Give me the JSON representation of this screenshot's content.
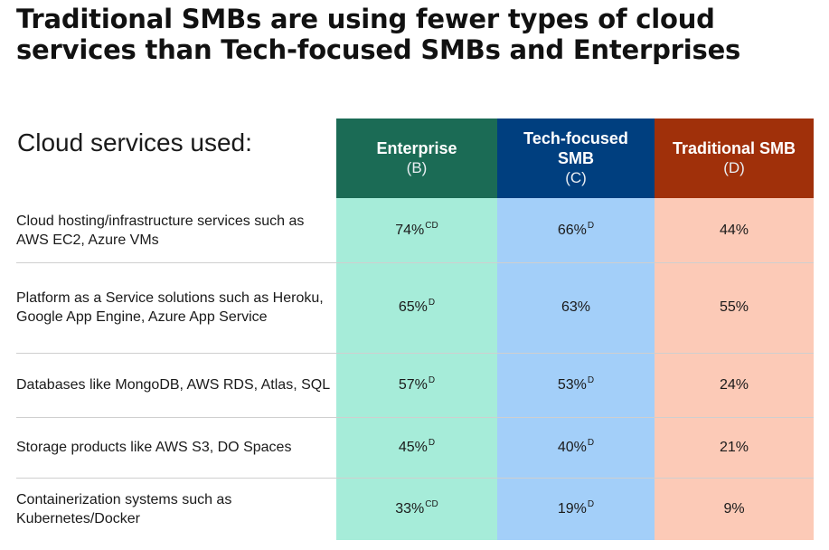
{
  "title_lines": [
    "Traditional SMBs are using fewer types of cloud",
    "services than Tech-focused SMBs and Enterprises"
  ],
  "subtitle": "Cloud services used:",
  "chart_data": {
    "type": "table",
    "columns": [
      {
        "name": "Enterprise",
        "code": "(B)",
        "color": "#1b6b55",
        "bg": "#a6ecd9"
      },
      {
        "name": "Tech-focused\nSMB",
        "code": "(C)",
        "color": "#003f7f",
        "bg": "#a3cff9"
      },
      {
        "name": "Traditional SMB",
        "code": "(D)",
        "color": "#a0300a",
        "bg": "#fccab7"
      }
    ],
    "rows": [
      {
        "label": "Cloud hosting/infrastructure services such as AWS EC2, Azure VMs",
        "cells": [
          {
            "value": "74%",
            "sig": "CD"
          },
          {
            "value": "66%",
            "sig": "D"
          },
          {
            "value": "44%",
            "sig": ""
          }
        ]
      },
      {
        "label": "Platform as a Service solutions such as Heroku, Google App Engine, Azure App Service",
        "cells": [
          {
            "value": "65%",
            "sig": "D"
          },
          {
            "value": "63%",
            "sig": ""
          },
          {
            "value": "55%",
            "sig": ""
          }
        ]
      },
      {
        "label": "Databases like MongoDB, AWS RDS, Atlas, SQL",
        "cells": [
          {
            "value": "57%",
            "sig": "D"
          },
          {
            "value": "53%",
            "sig": "D"
          },
          {
            "value": "24%",
            "sig": ""
          }
        ]
      },
      {
        "label": "Storage products like AWS S3, DO Spaces",
        "cells": [
          {
            "value": "45%",
            "sig": "D"
          },
          {
            "value": "40%",
            "sig": "D"
          },
          {
            "value": "21%",
            "sig": ""
          }
        ]
      },
      {
        "label": "Containerization systems such as Kubernetes/Docker",
        "cells": [
          {
            "value": "33%",
            "sig": "CD"
          },
          {
            "value": "19%",
            "sig": "D"
          },
          {
            "value": "9%",
            "sig": ""
          }
        ]
      }
    ]
  }
}
